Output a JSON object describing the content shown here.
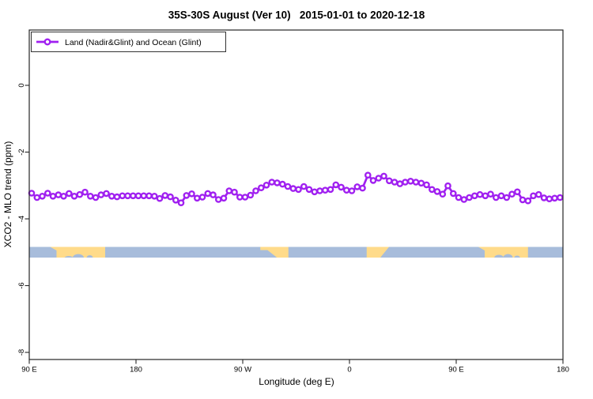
{
  "figure": {
    "title": "35S-30S August (Ver 10)   2015-01-01 to 2020-12-18",
    "background": "#ffffff"
  },
  "legend": {
    "label": "Land (Nadir&Glint) and Ocean (Glint)",
    "position": "top-left"
  },
  "axes": {
    "x": {
      "label": "Longitude (deg E)",
      "tick_labels": [
        "90 E",
        "180",
        "90 W",
        "0",
        "90 E",
        "180"
      ],
      "tick_lons": [
        90,
        180,
        270,
        360,
        450,
        540
      ]
    },
    "y": {
      "label": "XCO2 - MLO trend (ppm)",
      "tick_values": [
        0,
        -2,
        -4,
        -6,
        -8
      ]
    }
  },
  "chart_data": {
    "type": "line",
    "title": "35S-30S August (Ver 10)   2015-01-01 to 2020-12-18",
    "xlabel": "Longitude (deg E)",
    "ylabel": "XCO2 - MLO trend (ppm)",
    "xlim": [
      90,
      540
    ],
    "ylim": [
      -8.2,
      1.65
    ],
    "grid": false,
    "legend_position": "top-left",
    "x_axis_note": "longitude unwrapped eastward from 90E: 270=90W, 360=0, 450=90E, 540=180",
    "series": [
      {
        "name": "Land (Nadir&Glint) and Ocean (Glint)",
        "color": "#A020F0",
        "marker": "open-circle",
        "x": [
          92,
          96.5,
          101,
          105.5,
          110,
          114.5,
          119,
          123.5,
          128,
          132.5,
          137,
          141.5,
          146,
          150.5,
          155,
          159.5,
          164,
          168.5,
          173,
          177.5,
          182,
          186.5,
          191,
          195.5,
          200,
          204.5,
          209,
          213.5,
          218,
          222.5,
          227,
          231.5,
          236,
          240.5,
          245,
          249.5,
          254,
          258.5,
          263,
          267.5,
          272,
          276.5,
          281,
          285.5,
          290,
          294.5,
          299,
          303.5,
          308,
          312.5,
          317,
          321.5,
          326,
          330.5,
          335,
          339.5,
          344,
          348.5,
          353,
          357.5,
          362,
          366.5,
          371,
          375.5,
          380,
          384.5,
          389,
          393.5,
          398,
          402.5,
          407,
          411.5,
          416,
          420.5,
          425,
          429.5,
          434,
          438.5,
          443,
          447.5,
          452,
          456.5,
          461,
          465.5,
          470,
          474.5,
          479,
          483.5,
          488,
          492.5,
          497,
          501.5,
          506,
          510.5,
          515,
          519.5,
          524,
          528.5,
          533,
          537.5
        ],
        "values": [
          -3.23,
          -3.36,
          -3.32,
          -3.23,
          -3.32,
          -3.28,
          -3.32,
          -3.24,
          -3.32,
          -3.27,
          -3.2,
          -3.32,
          -3.36,
          -3.28,
          -3.24,
          -3.32,
          -3.34,
          -3.31,
          -3.31,
          -3.31,
          -3.31,
          -3.31,
          -3.31,
          -3.32,
          -3.39,
          -3.3,
          -3.34,
          -3.44,
          -3.52,
          -3.3,
          -3.25,
          -3.38,
          -3.35,
          -3.24,
          -3.28,
          -3.42,
          -3.38,
          -3.16,
          -3.2,
          -3.35,
          -3.35,
          -3.29,
          -3.16,
          -3.07,
          -2.99,
          -2.9,
          -2.92,
          -2.96,
          -3.03,
          -3.09,
          -3.12,
          -3.03,
          -3.12,
          -3.19,
          -3.16,
          -3.14,
          -3.12,
          -2.98,
          -3.05,
          -3.14,
          -3.16,
          -3.04,
          -3.08,
          -2.69,
          -2.85,
          -2.78,
          -2.72,
          -2.86,
          -2.9,
          -2.95,
          -2.9,
          -2.87,
          -2.9,
          -2.93,
          -2.98,
          -3.12,
          -3.18,
          -3.26,
          -3.01,
          -3.24,
          -3.36,
          -3.42,
          -3.36,
          -3.31,
          -3.27,
          -3.31,
          -3.26,
          -3.36,
          -3.31,
          -3.36,
          -3.26,
          -3.19,
          -3.43,
          -3.46,
          -3.31,
          -3.27,
          -3.37,
          -3.4,
          -3.38,
          -3.36
        ]
      }
    ],
    "land_ocean_strip": {
      "center_value": -5.0,
      "half_height_value": 0.16,
      "ocean_color": "#A7BCDB",
      "land_color": "#FFDB8A",
      "land_segments_lon": [
        [
          113,
          154
        ],
        [
          289.5,
          308.5
        ],
        [
          374.5,
          392
        ],
        [
          474,
          510.5
        ]
      ]
    }
  }
}
